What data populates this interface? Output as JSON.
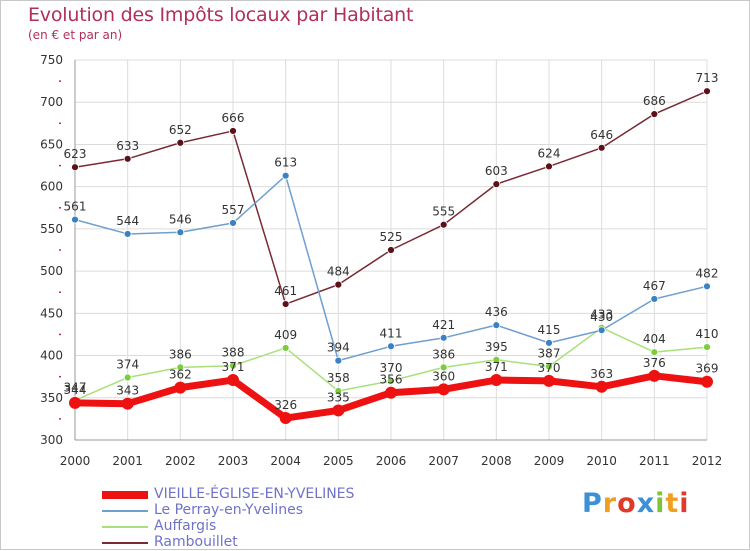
{
  "header": {
    "title": "Evolution des Impôts locaux par Habitant",
    "subtitle": "(en € et par an)"
  },
  "colors": {
    "title": "#b0305a",
    "grid": "#dcdcdc",
    "legend_text": "#6e73c9"
  },
  "logo": {
    "letters": [
      "P",
      "r",
      "o",
      "x",
      "i",
      "t",
      "i"
    ]
  },
  "chart_data": {
    "type": "line",
    "title": "Evolution des Impôts locaux par Habitant",
    "ylabel": "(en € et par an)",
    "xlabel": "",
    "ylim": [
      300,
      750
    ],
    "yticks": [
      300,
      350,
      400,
      450,
      500,
      550,
      600,
      650,
      700,
      750
    ],
    "categories": [
      "2000",
      "2001",
      "2002",
      "2003",
      "2004",
      "2005",
      "2006",
      "2007",
      "2008",
      "2009",
      "2010",
      "2011",
      "2012"
    ],
    "legend_position": "bottom-left",
    "series": [
      {
        "name": "VIEILLE-ÉGLISE-EN-YVELINES",
        "color": "#ee1111",
        "marker": "#ee1111",
        "width": 7,
        "values": [
          344,
          343,
          362,
          371,
          326,
          335,
          356,
          360,
          371,
          370,
          363,
          376,
          369
        ],
        "labels": [
          "344",
          "343",
          "362",
          "371",
          "326",
          "335",
          "356",
          "360",
          "371",
          "370",
          "363",
          "376",
          "369"
        ]
      },
      {
        "name": "Le Perray-en-Yvelines",
        "color": "#6f9fce",
        "marker": "#3b82c4",
        "width": 1.5,
        "values": [
          561,
          544,
          546,
          557,
          613,
          394,
          411,
          421,
          436,
          415,
          430,
          467,
          482
        ],
        "labels": [
          "561",
          "544",
          "546",
          "557",
          "613",
          "394",
          "411",
          "421",
          "436",
          "415",
          "430",
          "467",
          "482"
        ]
      },
      {
        "name": "Auffargis",
        "color": "#a8e07a",
        "marker": "#7ccd3e",
        "width": 1.5,
        "values": [
          347,
          374,
          386,
          388,
          409,
          358,
          370,
          386,
          395,
          387,
          433,
          404,
          410
        ],
        "labels": [
          "347",
          "374",
          "386",
          "388",
          "409",
          "358",
          "370",
          "386",
          "395",
          "387",
          "433",
          "404",
          "410"
        ]
      },
      {
        "name": "Rambouillet",
        "color": "#7a2a33",
        "marker": "#5c1018",
        "width": 1.5,
        "values": [
          623,
          633,
          652,
          666,
          461,
          484,
          525,
          555,
          603,
          624,
          646,
          686,
          713
        ],
        "labels": [
          "623",
          "633",
          "652",
          "666",
          "461",
          "484",
          "525",
          "555",
          "603",
          "624",
          "646",
          "686",
          "713"
        ]
      }
    ]
  }
}
